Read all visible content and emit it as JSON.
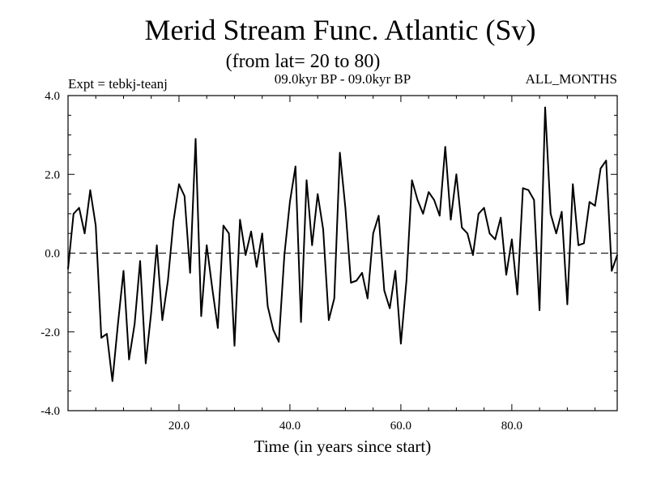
{
  "chart_data": {
    "type": "line",
    "title": "Merid Stream Func. Atlantic (Sv)",
    "subtitle": "(from lat= 20 to 80)",
    "experiment": "Expt = tebkj-teanj",
    "period": "09.0kyr BP - 09.0kyr BP",
    "months": "ALL_MONTHS",
    "xlabel": "Time (in years since start)",
    "ylabel": "",
    "xlim": [
      0,
      99
    ],
    "ylim": [
      -4.0,
      4.0
    ],
    "x_ticks": [
      20.0,
      40.0,
      60.0,
      80.0
    ],
    "x_tick_labels": [
      "20.0",
      "40.0",
      "60.0",
      "80.0"
    ],
    "y_ticks": [
      -4.0,
      -2.0,
      0.0,
      2.0,
      4.0
    ],
    "y_tick_labels": [
      "-4.0",
      "-2.0",
      "0.0",
      "2.0",
      "4.0"
    ],
    "zero_line": "dashed",
    "series": [
      {
        "name": "Merid Stream Func.",
        "x": [
          0,
          1,
          2,
          3,
          4,
          5,
          6,
          7,
          8,
          9,
          10,
          11,
          12,
          13,
          14,
          15,
          16,
          17,
          18,
          19,
          20,
          21,
          22,
          23,
          24,
          25,
          26,
          27,
          28,
          29,
          30,
          31,
          32,
          33,
          34,
          35,
          36,
          37,
          38,
          39,
          40,
          41,
          42,
          43,
          44,
          45,
          46,
          47,
          48,
          49,
          50,
          51,
          52,
          53,
          54,
          55,
          56,
          57,
          58,
          59,
          60,
          61,
          62,
          63,
          64,
          65,
          66,
          67,
          68,
          69,
          70,
          71,
          72,
          73,
          74,
          75,
          76,
          77,
          78,
          79,
          80,
          81,
          82,
          83,
          84,
          85,
          86,
          87,
          88,
          89,
          90,
          91,
          92,
          93,
          94,
          95,
          96,
          97,
          98,
          99
        ],
        "values": [
          -0.4,
          1.0,
          1.15,
          0.5,
          1.6,
          0.7,
          -2.15,
          -2.05,
          -3.25,
          -1.8,
          -0.45,
          -2.7,
          -1.8,
          -0.2,
          -2.8,
          -1.5,
          0.2,
          -1.7,
          -0.7,
          0.8,
          1.75,
          1.45,
          -0.5,
          2.9,
          -1.6,
          0.2,
          -0.9,
          -1.9,
          0.7,
          0.5,
          -2.35,
          0.85,
          -0.05,
          0.55,
          -0.35,
          0.5,
          -1.35,
          -1.95,
          -2.25,
          -0.05,
          1.3,
          2.2,
          -1.75,
          1.85,
          0.2,
          1.5,
          0.6,
          -1.7,
          -1.15,
          2.55,
          1.15,
          -0.75,
          -0.7,
          -0.5,
          -1.15,
          0.5,
          0.95,
          -0.95,
          -1.4,
          -0.45,
          -2.3,
          -0.7,
          1.85,
          1.35,
          1.0,
          1.55,
          1.35,
          0.95,
          2.7,
          0.85,
          2.0,
          0.65,
          0.5,
          -0.05,
          1.0,
          1.15,
          0.5,
          0.35,
          0.9,
          -0.55,
          0.35,
          -1.05,
          1.65,
          1.6,
          1.35,
          -1.45,
          3.7,
          1.0,
          0.5,
          1.05,
          -1.3,
          1.75,
          0.2,
          0.25,
          1.3,
          1.2,
          2.15,
          2.35,
          -0.45,
          -0.05
        ]
      }
    ]
  }
}
